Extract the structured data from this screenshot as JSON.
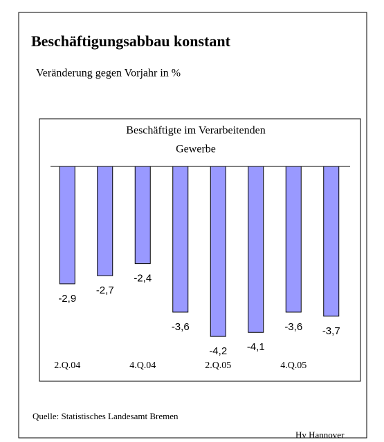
{
  "chart_data": {
    "type": "bar",
    "title": "Beschäftigungsabbau konstant",
    "subtitle": "Veränderung gegen Vorjahr in %",
    "chart_title": [
      "Beschäftigte im Verarbeitenden",
      "Gewerbe"
    ],
    "categories": [
      "2.Q.04",
      null,
      "4.Q.04",
      null,
      "2.Q.05",
      null,
      "4.Q.05",
      null
    ],
    "values": [
      -2.9,
      -2.7,
      -2.4,
      -3.6,
      -4.2,
      -4.1,
      -3.6,
      -3.7
    ],
    "value_labels": [
      "-2,9",
      "-2,7",
      "-2,4",
      "-3,6",
      "-4,2",
      "-4,1",
      "-3,6",
      "-3,7"
    ],
    "color": "#9999ff",
    "ylim": [
      -5,
      0
    ],
    "source": "Quelle: Statistisches Landesamt Bremen",
    "credit": "Hv Hannover"
  }
}
